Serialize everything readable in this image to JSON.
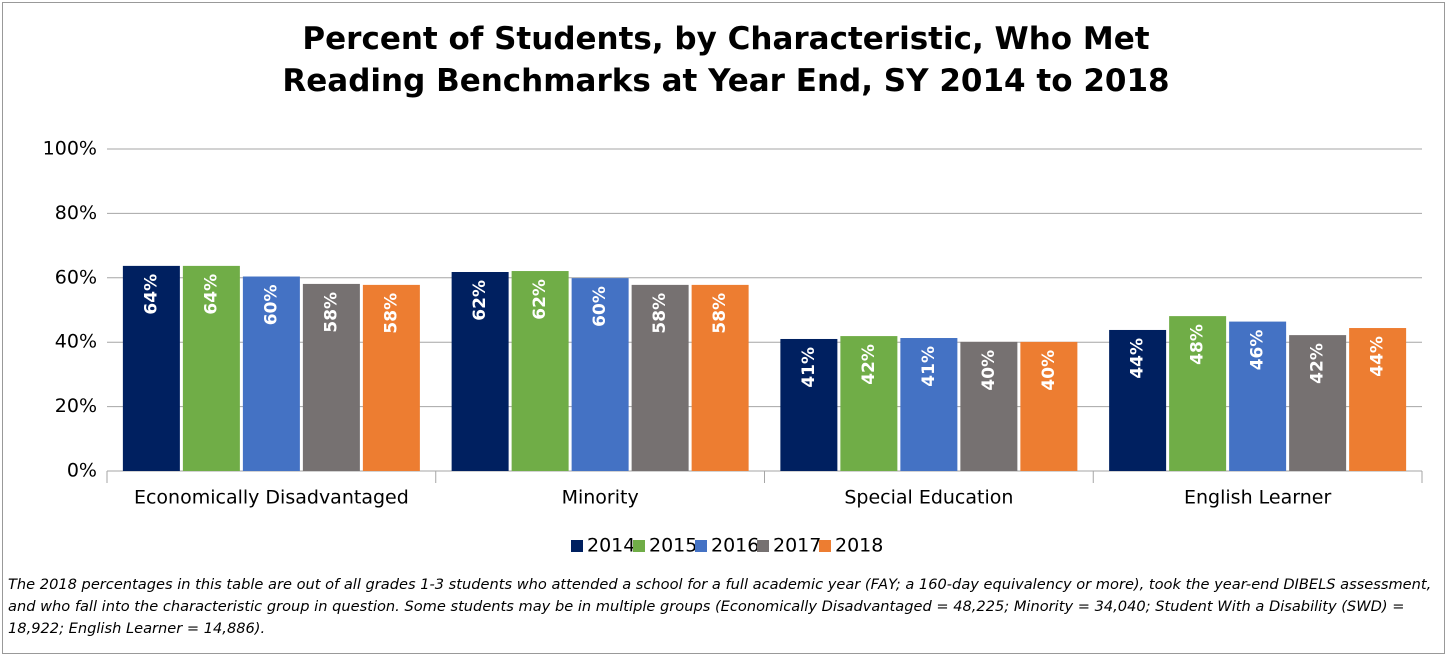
{
  "chart_data": {
    "type": "bar",
    "title": "Percent of Students, by Characteristic, Who Met Reading Benchmarks at Year End, SY 2014 to 2018",
    "categories": [
      "Economically Disadvantaged",
      "Minority",
      "Special Education",
      "English Learner"
    ],
    "series": [
      {
        "name": "2014",
        "color": "#002060",
        "values": [
          63.7,
          61.8,
          41.0,
          43.8
        ],
        "value_labels": [
          "64%",
          "62%",
          "41%",
          "44%"
        ]
      },
      {
        "name": "2015",
        "color": "#70ad47",
        "values": [
          63.7,
          62.1,
          41.9,
          48.1
        ],
        "value_labels": [
          "64%",
          "62%",
          "42%",
          "48%"
        ]
      },
      {
        "name": "2016",
        "color": "#4472c4",
        "values": [
          60.4,
          59.9,
          41.3,
          46.4
        ],
        "value_labels": [
          "60%",
          "60%",
          "41%",
          "46%"
        ]
      },
      {
        "name": "2017",
        "color": "#767171",
        "values": [
          58.1,
          57.8,
          40.1,
          42.2
        ],
        "value_labels": [
          "58%",
          "58%",
          "40%",
          "42%"
        ]
      },
      {
        "name": "2018",
        "color": "#ed7d31",
        "values": [
          57.8,
          57.8,
          40.1,
          44.4
        ],
        "value_labels": [
          "58%",
          "58%",
          "40%",
          "44%"
        ]
      }
    ],
    "ylim": [
      0,
      100
    ],
    "yticks": [
      {
        "value": 0,
        "label": "0%"
      },
      {
        "value": 20,
        "label": "20%"
      },
      {
        "value": 40,
        "label": "40%"
      },
      {
        "value": 60,
        "label": "60%"
      },
      {
        "value": 80,
        "label": "80%"
      },
      {
        "value": 100,
        "label": "100%"
      }
    ],
    "grid": true,
    "legend": "bottom",
    "note": "The 2018 percentages in this table are out of all grades 1-3 students who attended a school for a full academic year (FAY; a 160-day equivalency or more), took the year-end DIBELS assessment, and who fall into the characteristic group in question. Some students may be in multiple groups (Economically Disadvantaged = 48,225; Minority = 34,040; Student With a Disability (SWD) = 18,922; English Learner = 14,886)."
  }
}
